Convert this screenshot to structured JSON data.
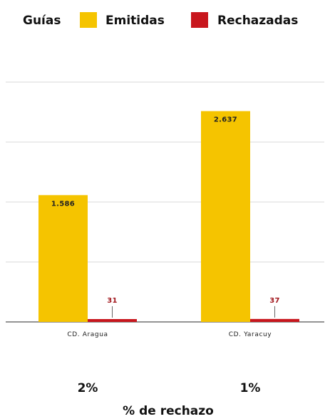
{
  "chart_data": {
    "type": "bar",
    "categories": [
      "CD. Aragua",
      "CD. Yaracuy"
    ],
    "series": [
      {
        "name": "Emitidas",
        "values": [
          1586,
          2637
        ],
        "labels": [
          "1.586",
          "2.637"
        ]
      },
      {
        "name": "Rechazadas",
        "values": [
          31,
          37
        ],
        "labels": [
          "31",
          "37"
        ]
      }
    ],
    "ylim": [
      0,
      3000
    ],
    "gridlines": [
      0,
      750,
      1500,
      2250,
      3000
    ],
    "grid": true,
    "legend_title": "Guías",
    "legend_position": "top",
    "rejection_percentages": [
      "2%",
      "1%"
    ],
    "rejection_caption": "% de rechazo"
  },
  "colors": {
    "emitidas": "#f5c400",
    "rechazadas": "#c8161d",
    "grid": "#d9d9d9",
    "axis": "#555555",
    "emitidas_label": "#222222",
    "rechazadas_label": "#a0141a"
  }
}
